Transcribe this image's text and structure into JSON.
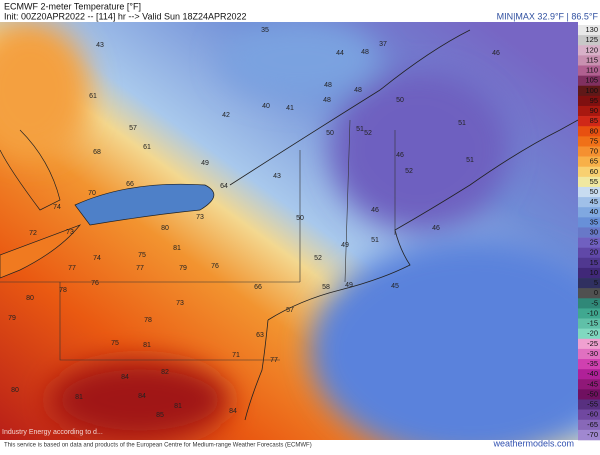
{
  "header": {
    "title": "ECMWF 2-meter Temperature [°F]",
    "subtitle": "Init: 00Z20APR2022 -- [114] hr --> Valid Sun 18Z24APR2022",
    "minmax": "MIN|MAX 32.9°F | 86.5°F"
  },
  "footer": {
    "notice": "This service is based on data and products of the European Centre for Medium-range Weather Forecasts (ECMWF)",
    "brand": "weathermodels.com",
    "watermark": "Industry Energy according to d..."
  },
  "colorbar": {
    "ticks": [
      130,
      125,
      120,
      115,
      110,
      105,
      100,
      95,
      90,
      85,
      80,
      75,
      70,
      65,
      60,
      55,
      50,
      45,
      40,
      35,
      30,
      25,
      20,
      15,
      10,
      5,
      0,
      -5,
      -10,
      -15,
      -20,
      -25,
      -30,
      -35,
      -40,
      -45,
      -50,
      -55,
      -60,
      -65,
      -70
    ],
    "colors": [
      "#e8e8e8",
      "#c8c8c8",
      "#d8b0c8",
      "#c890b0",
      "#b06090",
      "#803060",
      "#601818",
      "#801010",
      "#a81810",
      "#d02818",
      "#e85010",
      "#f07018",
      "#f59030",
      "#f8b048",
      "#f8d070",
      "#f0e8a0",
      "#c8dcf0",
      "#a0c0e8",
      "#80a8e0",
      "#6890d8",
      "#6878c8",
      "#7060c0",
      "#6048a8",
      "#503890",
      "#402878",
      "#303060",
      "#505050",
      "#308878",
      "#40a890",
      "#60c0a8",
      "#80d8c0",
      "#f0a0d0",
      "#e070c0",
      "#d040b0",
      "#b02098",
      "#901878",
      "#701060",
      "#583080",
      "#7048a0",
      "#8868b8",
      "#a088d0"
    ]
  },
  "map": {
    "labels": [
      "35",
      "43",
      "37",
      "44",
      "48",
      "46",
      "61",
      "48",
      "48",
      "48",
      "50",
      "40",
      "41",
      "42",
      "57",
      "68",
      "49",
      "51",
      "52",
      "50",
      "51",
      "61",
      "66",
      "64",
      "43",
      "51",
      "46",
      "52",
      "74",
      "70",
      "73",
      "50",
      "46",
      "46",
      "72",
      "73",
      "74",
      "80",
      "81",
      "75",
      "77",
      "79",
      "76",
      "52",
      "49",
      "51",
      "77",
      "78",
      "76",
      "80",
      "73",
      "78",
      "66",
      "57",
      "58",
      "49",
      "45",
      "79",
      "75",
      "81",
      "71",
      "63",
      "80",
      "84",
      "82",
      "81",
      "85",
      "84",
      "81",
      "84",
      "77"
    ]
  }
}
